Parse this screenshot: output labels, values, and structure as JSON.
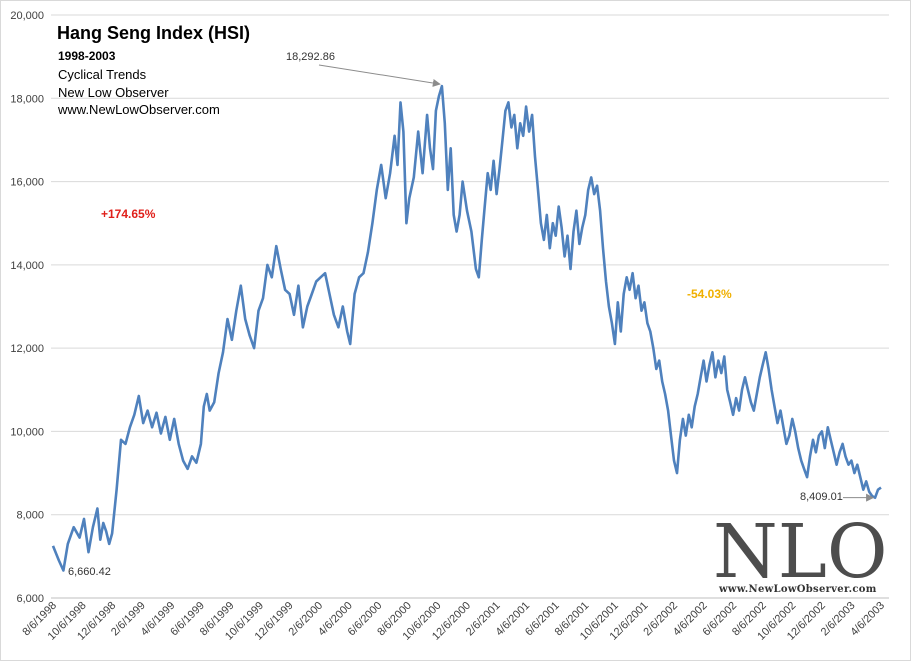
{
  "chart_data": {
    "type": "line",
    "title": "Hang Seng Index (HSI)",
    "subtitle_lines": [
      "1998-2003",
      "Cyclical Trends",
      "New Low Observer",
      "www.NewLowObserver.com"
    ],
    "ylim": [
      6000,
      20000
    ],
    "y_ticks": [
      "6,000",
      "8,000",
      "10,000",
      "12,000",
      "14,000",
      "16,000",
      "18,000",
      "20,000"
    ],
    "y_tick_values": [
      6000,
      8000,
      10000,
      12000,
      14000,
      16000,
      18000,
      20000
    ],
    "x_ticks": [
      "8/6/1998",
      "10/6/1998",
      "12/6/1998",
      "2/6/1999",
      "4/6/1999",
      "6/6/1999",
      "8/6/1999",
      "10/6/1999",
      "12/6/1999",
      "2/6/2000",
      "4/6/2000",
      "6/6/2000",
      "8/6/2000",
      "10/6/2000",
      "12/6/2000",
      "2/6/2001",
      "4/6/2001",
      "6/6/2001",
      "8/6/2001",
      "10/6/2001",
      "12/6/2001",
      "2/6/2002",
      "4/6/2002",
      "6/6/2002",
      "8/6/2002",
      "10/6/2002",
      "12/6/2002",
      "2/6/2003",
      "4/6/2003"
    ],
    "series": [
      {
        "name": "HSI",
        "color": "#4f81bd",
        "points": [
          [
            0,
            7250
          ],
          [
            0.2,
            6900
          ],
          [
            0.35,
            6660
          ],
          [
            0.5,
            7300
          ],
          [
            0.7,
            7700
          ],
          [
            0.9,
            7450
          ],
          [
            1.05,
            7900
          ],
          [
            1.2,
            7100
          ],
          [
            1.35,
            7700
          ],
          [
            1.5,
            8150
          ],
          [
            1.6,
            7400
          ],
          [
            1.7,
            7800
          ],
          [
            1.8,
            7600
          ],
          [
            1.9,
            7300
          ],
          [
            2.0,
            7550
          ],
          [
            2.15,
            8600
          ],
          [
            2.3,
            9800
          ],
          [
            2.45,
            9700
          ],
          [
            2.6,
            10100
          ],
          [
            2.75,
            10400
          ],
          [
            2.9,
            10850
          ],
          [
            3.05,
            10200
          ],
          [
            3.2,
            10500
          ],
          [
            3.35,
            10100
          ],
          [
            3.5,
            10450
          ],
          [
            3.65,
            9950
          ],
          [
            3.8,
            10350
          ],
          [
            3.95,
            9800
          ],
          [
            4.1,
            10300
          ],
          [
            4.25,
            9700
          ],
          [
            4.4,
            9300
          ],
          [
            4.55,
            9100
          ],
          [
            4.7,
            9400
          ],
          [
            4.85,
            9250
          ],
          [
            5.0,
            9700
          ],
          [
            5.1,
            10600
          ],
          [
            5.2,
            10900
          ],
          [
            5.3,
            10500
          ],
          [
            5.45,
            10700
          ],
          [
            5.6,
            11400
          ],
          [
            5.75,
            11900
          ],
          [
            5.9,
            12700
          ],
          [
            6.05,
            12200
          ],
          [
            6.2,
            12900
          ],
          [
            6.35,
            13500
          ],
          [
            6.5,
            12700
          ],
          [
            6.65,
            12300
          ],
          [
            6.8,
            12000
          ],
          [
            6.95,
            12900
          ],
          [
            7.1,
            13200
          ],
          [
            7.25,
            14000
          ],
          [
            7.4,
            13700
          ],
          [
            7.55,
            14450
          ],
          [
            7.7,
            13900
          ],
          [
            7.85,
            13400
          ],
          [
            8.0,
            13300
          ],
          [
            8.15,
            12800
          ],
          [
            8.3,
            13500
          ],
          [
            8.45,
            12500
          ],
          [
            8.6,
            13000
          ],
          [
            8.75,
            13300
          ],
          [
            8.9,
            13600
          ],
          [
            9.05,
            13700
          ],
          [
            9.2,
            13800
          ],
          [
            9.35,
            13300
          ],
          [
            9.5,
            12800
          ],
          [
            9.65,
            12500
          ],
          [
            9.8,
            13000
          ],
          [
            9.95,
            12400
          ],
          [
            10.05,
            12100
          ],
          [
            10.2,
            13300
          ],
          [
            10.35,
            13700
          ],
          [
            10.5,
            13800
          ],
          [
            10.65,
            14300
          ],
          [
            10.8,
            15000
          ],
          [
            10.95,
            15800
          ],
          [
            11.1,
            16400
          ],
          [
            11.25,
            15600
          ],
          [
            11.4,
            16200
          ],
          [
            11.55,
            17100
          ],
          [
            11.65,
            16400
          ],
          [
            11.75,
            17900
          ],
          [
            11.85,
            17200
          ],
          [
            11.95,
            15000
          ],
          [
            12.05,
            15600
          ],
          [
            12.2,
            16100
          ],
          [
            12.35,
            17200
          ],
          [
            12.5,
            16200
          ],
          [
            12.65,
            17600
          ],
          [
            12.75,
            16800
          ],
          [
            12.85,
            16300
          ],
          [
            12.95,
            17700
          ],
          [
            13.05,
            18050
          ],
          [
            13.15,
            18292.86
          ],
          [
            13.25,
            17400
          ],
          [
            13.35,
            15800
          ],
          [
            13.45,
            16800
          ],
          [
            13.55,
            15200
          ],
          [
            13.65,
            14800
          ],
          [
            13.75,
            15200
          ],
          [
            13.85,
            16000
          ],
          [
            14.0,
            15300
          ],
          [
            14.15,
            14800
          ],
          [
            14.3,
            13900
          ],
          [
            14.4,
            13700
          ],
          [
            14.5,
            14600
          ],
          [
            14.6,
            15400
          ],
          [
            14.7,
            16200
          ],
          [
            14.8,
            15800
          ],
          [
            14.9,
            16500
          ],
          [
            15.0,
            15700
          ],
          [
            15.1,
            16300
          ],
          [
            15.2,
            17000
          ],
          [
            15.3,
            17700
          ],
          [
            15.4,
            17900
          ],
          [
            15.5,
            17300
          ],
          [
            15.6,
            17600
          ],
          [
            15.7,
            16800
          ],
          [
            15.8,
            17400
          ],
          [
            15.9,
            17100
          ],
          [
            16.0,
            17800
          ],
          [
            16.1,
            17200
          ],
          [
            16.2,
            17600
          ],
          [
            16.3,
            16600
          ],
          [
            16.4,
            15800
          ],
          [
            16.5,
            15000
          ],
          [
            16.6,
            14600
          ],
          [
            16.7,
            15200
          ],
          [
            16.8,
            14400
          ],
          [
            16.9,
            15000
          ],
          [
            17.0,
            14700
          ],
          [
            17.1,
            15400
          ],
          [
            17.2,
            14900
          ],
          [
            17.3,
            14200
          ],
          [
            17.4,
            14700
          ],
          [
            17.5,
            13900
          ],
          [
            17.6,
            14800
          ],
          [
            17.7,
            15300
          ],
          [
            17.8,
            14500
          ],
          [
            17.9,
            14900
          ],
          [
            18.0,
            15200
          ],
          [
            18.1,
            15800
          ],
          [
            18.2,
            16100
          ],
          [
            18.3,
            15700
          ],
          [
            18.4,
            15900
          ],
          [
            18.5,
            15300
          ],
          [
            18.6,
            14400
          ],
          [
            18.7,
            13600
          ],
          [
            18.8,
            13000
          ],
          [
            18.9,
            12600
          ],
          [
            19.0,
            12100
          ],
          [
            19.1,
            13100
          ],
          [
            19.2,
            12400
          ],
          [
            19.3,
            13300
          ],
          [
            19.4,
            13700
          ],
          [
            19.5,
            13400
          ],
          [
            19.6,
            13800
          ],
          [
            19.7,
            13200
          ],
          [
            19.8,
            13500
          ],
          [
            19.9,
            12900
          ],
          [
            20.0,
            13100
          ],
          [
            20.1,
            12600
          ],
          [
            20.2,
            12400
          ],
          [
            20.3,
            12000
          ],
          [
            20.4,
            11500
          ],
          [
            20.5,
            11700
          ],
          [
            20.6,
            11200
          ],
          [
            20.7,
            10900
          ],
          [
            20.8,
            10500
          ],
          [
            20.9,
            9900
          ],
          [
            21.0,
            9300
          ],
          [
            21.1,
            9000
          ],
          [
            21.2,
            9800
          ],
          [
            21.3,
            10300
          ],
          [
            21.4,
            9900
          ],
          [
            21.5,
            10400
          ],
          [
            21.6,
            10100
          ],
          [
            21.7,
            10600
          ],
          [
            21.8,
            10900
          ],
          [
            21.9,
            11300
          ],
          [
            22.0,
            11700
          ],
          [
            22.1,
            11200
          ],
          [
            22.2,
            11600
          ],
          [
            22.3,
            11900
          ],
          [
            22.4,
            11300
          ],
          [
            22.5,
            11700
          ],
          [
            22.6,
            11400
          ],
          [
            22.7,
            11800
          ],
          [
            22.8,
            11000
          ],
          [
            22.9,
            10700
          ],
          [
            23.0,
            10400
          ],
          [
            23.1,
            10800
          ],
          [
            23.2,
            10500
          ],
          [
            23.3,
            11000
          ],
          [
            23.4,
            11300
          ],
          [
            23.5,
            11000
          ],
          [
            23.6,
            10700
          ],
          [
            23.7,
            10500
          ],
          [
            23.8,
            10900
          ],
          [
            23.9,
            11300
          ],
          [
            24.0,
            11600
          ],
          [
            24.1,
            11900
          ],
          [
            24.2,
            11500
          ],
          [
            24.3,
            11000
          ],
          [
            24.4,
            10600
          ],
          [
            24.5,
            10200
          ],
          [
            24.6,
            10500
          ],
          [
            24.7,
            10100
          ],
          [
            24.8,
            9700
          ],
          [
            24.9,
            9900
          ],
          [
            25.0,
            10300
          ],
          [
            25.1,
            10000
          ],
          [
            25.2,
            9600
          ],
          [
            25.3,
            9300
          ],
          [
            25.4,
            9100
          ],
          [
            25.5,
            8900
          ],
          [
            25.6,
            9400
          ],
          [
            25.7,
            9800
          ],
          [
            25.8,
            9500
          ],
          [
            25.9,
            9900
          ],
          [
            26.0,
            10000
          ],
          [
            26.1,
            9600
          ],
          [
            26.2,
            10100
          ],
          [
            26.3,
            9800
          ],
          [
            26.4,
            9500
          ],
          [
            26.5,
            9200
          ],
          [
            26.6,
            9500
          ],
          [
            26.7,
            9700
          ],
          [
            26.8,
            9400
          ],
          [
            26.9,
            9200
          ],
          [
            27.0,
            9300
          ],
          [
            27.1,
            9000
          ],
          [
            27.2,
            9200
          ],
          [
            27.3,
            8900
          ],
          [
            27.4,
            8600
          ],
          [
            27.5,
            8800
          ],
          [
            27.6,
            8550
          ],
          [
            27.7,
            8450
          ],
          [
            27.8,
            8409.01
          ],
          [
            27.9,
            8600
          ],
          [
            28.0,
            8650
          ]
        ]
      }
    ],
    "annotations": {
      "peak_label": "18,292.86",
      "low_start_label": "6,660.42",
      "end_label": "8,409.01",
      "gain_label": "+174.65%",
      "loss_label": "-54.03%"
    },
    "colors": {
      "line": "#4f81bd",
      "gain": "#e0201b",
      "loss": "#f0b000",
      "grid": "#d9d9d9"
    },
    "grid": true
  },
  "watermark": {
    "logo_text": "NLO",
    "site_text": "www.NewLowObserver.com"
  }
}
